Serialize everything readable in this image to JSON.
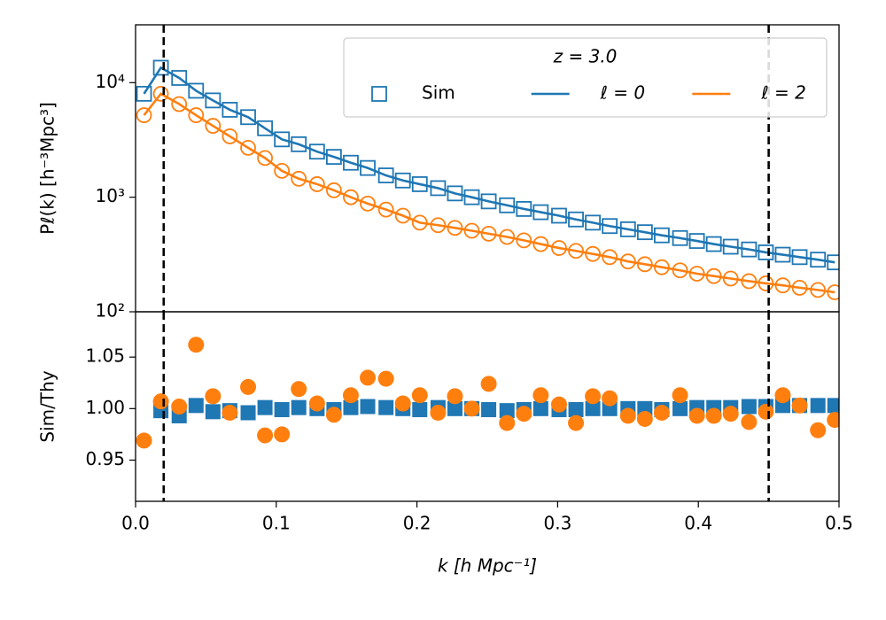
{
  "chart_data": [
    {
      "type": "line",
      "ylabel": "Pℓ(k)   [h⁻³Mpc³]",
      "legend_title": "z = 3.0",
      "legend": "upper right",
      "x": [
        0.006,
        0.018,
        0.031,
        0.043,
        0.055,
        0.067,
        0.08,
        0.092,
        0.104,
        0.116,
        0.129,
        0.141,
        0.153,
        0.165,
        0.178,
        0.19,
        0.202,
        0.215,
        0.227,
        0.239,
        0.251,
        0.264,
        0.276,
        0.288,
        0.301,
        0.313,
        0.325,
        0.337,
        0.35,
        0.362,
        0.374,
        0.387,
        0.399,
        0.411,
        0.423,
        0.436,
        0.448,
        0.46,
        0.472,
        0.485,
        0.497
      ],
      "series": [
        {
          "name": "Sim",
          "color": "#1f77b4",
          "marker": "square-open",
          "values": [
            8000,
            13500,
            11000,
            8500,
            7000,
            5800,
            5000,
            4000,
            3200,
            2900,
            2500,
            2250,
            2000,
            1800,
            1550,
            1400,
            1300,
            1200,
            1080,
            1000,
            920,
            850,
            790,
            740,
            690,
            640,
            600,
            560,
            525,
            495,
            465,
            440,
            415,
            390,
            370,
            350,
            330,
            315,
            300,
            285,
            270
          ]
        },
        {
          "color": "#ff7f0e",
          "marker": "circle-open",
          "values": [
            5200,
            8000,
            6500,
            5200,
            4200,
            3400,
            2700,
            2200,
            1700,
            1450,
            1300,
            1150,
            1000,
            880,
            780,
            690,
            600,
            570,
            540,
            510,
            480,
            450,
            420,
            390,
            360,
            340,
            320,
            300,
            275,
            260,
            245,
            230,
            215,
            205,
            195,
            185,
            177,
            170,
            162,
            155,
            148
          ]
        },
        {
          "name": "ℓ = 0",
          "color": "#1f77b4",
          "marker": "line",
          "values": [
            8000,
            13500,
            11000,
            8500,
            7000,
            5800,
            5000,
            4000,
            3200,
            2900,
            2500,
            2250,
            2000,
            1800,
            1550,
            1400,
            1300,
            1200,
            1080,
            1000,
            920,
            850,
            790,
            740,
            690,
            640,
            600,
            560,
            525,
            495,
            465,
            440,
            415,
            390,
            370,
            350,
            330,
            315,
            300,
            285,
            270
          ]
        },
        {
          "name": "ℓ = 2",
          "color": "#ff7f0e",
          "marker": "line",
          "values": [
            5200,
            8000,
            6500,
            5200,
            4200,
            3400,
            2700,
            2200,
            1700,
            1450,
            1300,
            1150,
            1000,
            880,
            780,
            690,
            600,
            570,
            540,
            510,
            480,
            450,
            420,
            390,
            360,
            340,
            320,
            300,
            275,
            260,
            245,
            230,
            215,
            205,
            195,
            185,
            177,
            170,
            162,
            155,
            148
          ]
        }
      ],
      "xlim": [
        0,
        0.5
      ],
      "yscale": "log",
      "ylim": [
        100,
        32000
      ],
      "yticks": [
        {
          "value": 100,
          "label": "10²"
        },
        {
          "value": 1000,
          "label": "10³"
        },
        {
          "value": 10000,
          "label": "10⁴"
        }
      ],
      "vlines": [
        0.02,
        0.45
      ]
    },
    {
      "type": "scatter",
      "ylabel": "Sim/Thy",
      "xlabel": "k   [h Mpc⁻¹]",
      "x": [
        0.006,
        0.018,
        0.031,
        0.043,
        0.055,
        0.067,
        0.08,
        0.092,
        0.104,
        0.116,
        0.129,
        0.141,
        0.153,
        0.165,
        0.178,
        0.19,
        0.202,
        0.215,
        0.227,
        0.239,
        0.251,
        0.264,
        0.276,
        0.288,
        0.301,
        0.313,
        0.325,
        0.337,
        0.35,
        0.362,
        0.374,
        0.387,
        0.399,
        0.411,
        0.423,
        0.436,
        0.448,
        0.46,
        0.472,
        0.485,
        0.497
      ],
      "series": [
        {
          "color": "#1f77b4",
          "marker": "square",
          "values": [
            null,
            0.998,
            0.993,
            1.003,
            0.997,
            0.998,
            0.996,
            1.001,
            0.999,
            1.001,
            1.0,
            0.999,
            1.001,
            1.002,
            1.001,
            1.0,
            0.999,
            1.001,
            1.0,
            1.0,
            0.999,
            0.998,
            0.999,
            1.0,
            0.999,
            0.999,
            1.0,
            1.0,
            1.0,
            1.0,
            0.999,
            1.0,
            1.001,
            1.001,
            1.001,
            1.002,
            1.002,
            1.003,
            1.003,
            1.003,
            1.003
          ]
        },
        {
          "color": "#ff7f0e",
          "marker": "circle",
          "values": [
            0.969,
            1.007,
            1.002,
            1.062,
            1.012,
            0.996,
            1.021,
            0.974,
            0.975,
            1.019,
            1.005,
            0.994,
            1.013,
            1.03,
            1.029,
            1.005,
            1.013,
            0.996,
            1.012,
            1.0,
            1.024,
            0.986,
            0.995,
            1.013,
            1.004,
            0.986,
            1.012,
            1.01,
            0.993,
            0.99,
            0.996,
            1.013,
            0.993,
            0.993,
            0.995,
            0.987,
            0.997,
            1.013,
            1.003,
            0.979,
            0.989
          ]
        }
      ],
      "xlim": [
        0,
        0.5
      ],
      "xticks": [
        {
          "value": 0,
          "label": "0.0"
        },
        0.1,
        0.2,
        0.3,
        0.4,
        0.5
      ],
      "ylim": [
        0.91,
        1.094
      ],
      "yticks": [
        0.95,
        {
          "value": 1,
          "label": "1.00"
        },
        1.05
      ],
      "vlines": [
        0.02,
        0.45
      ]
    }
  ]
}
